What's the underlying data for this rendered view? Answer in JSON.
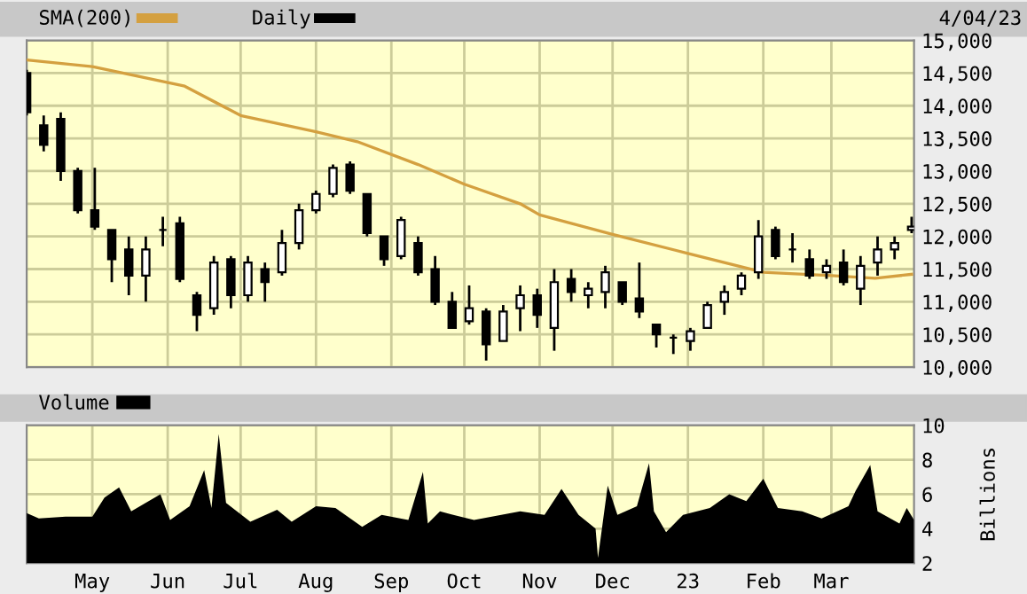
{
  "chart_data": [
    {
      "type": "candlestick",
      "xlim": [
        "2022-04-04",
        "2023-04-04"
      ],
      "ylim": [
        10000,
        15000
      ],
      "xticks": [
        {
          "value": "2022-05-01",
          "label": null
        },
        {
          "value": "2022-06-01",
          "label": null
        },
        {
          "value": "2022-07-01",
          "label": null
        },
        {
          "value": "2022-08-01",
          "label": null
        },
        {
          "value": "2022-09-01",
          "label": null
        },
        {
          "value": "2022-10-01",
          "label": null
        },
        {
          "value": "2022-11-01",
          "label": null
        },
        {
          "value": "2022-12-01",
          "label": null
        },
        {
          "value": "2023-01-01",
          "label": null
        },
        {
          "value": "2023-02-01",
          "label": null
        },
        {
          "value": "2023-03-01",
          "label": null
        }
      ],
      "yticks": [
        {
          "value": 10000,
          "label": "10,000"
        },
        {
          "value": 10500,
          "label": "10,500"
        },
        {
          "value": 11000,
          "label": "11,000"
        },
        {
          "value": 11500,
          "label": "11,500"
        },
        {
          "value": 12000,
          "label": "12,000"
        },
        {
          "value": 12500,
          "label": "12,500"
        },
        {
          "value": 13000,
          "label": "13,000"
        },
        {
          "value": 13500,
          "label": "13,500"
        },
        {
          "value": 14000,
          "label": "14,000"
        },
        {
          "value": 14500,
          "label": "14,500"
        },
        {
          "value": 15000,
          "label": "15,000"
        }
      ],
      "tick_labels": "y",
      "grid": true,
      "legend": "top left",
      "annotations": [
        "4/04/23"
      ],
      "series": [
        {
          "name": "SMA(200)",
          "type": "line",
          "color": "#d4a040",
          "x": [
            "2022-04-04",
            "2022-05-01",
            "2022-06-08",
            "2022-07-01",
            "2022-08-01",
            "2022-08-18",
            "2022-09-12",
            "2022-10-01",
            "2022-10-24",
            "2022-11-01",
            "2022-12-01",
            "2023-01-01",
            "2023-02-01",
            "2023-03-01",
            "2023-03-19",
            "2023-04-03"
          ],
          "values": [
            14700,
            14600,
            14300,
            13850,
            13600,
            13450,
            13100,
            12800,
            12500,
            12330,
            12030,
            11740,
            11450,
            11400,
            11360,
            11420
          ]
        },
        {
          "name": "Daily",
          "type": "candlestick",
          "color": "#000000",
          "x": [
            "2022-04-04",
            "2022-04-11",
            "2022-04-18",
            "2022-04-25",
            "2022-05-02",
            "2022-05-09",
            "2022-05-16",
            "2022-05-23",
            "2022-05-30",
            "2022-06-06",
            "2022-06-13",
            "2022-06-20",
            "2022-06-27",
            "2022-07-04",
            "2022-07-11",
            "2022-07-18",
            "2022-07-25",
            "2022-08-01",
            "2022-08-08",
            "2022-08-15",
            "2022-08-22",
            "2022-08-29",
            "2022-09-05",
            "2022-09-12",
            "2022-09-19",
            "2022-09-26",
            "2022-10-03",
            "2022-10-10",
            "2022-10-17",
            "2022-10-24",
            "2022-10-31",
            "2022-11-07",
            "2022-11-14",
            "2022-11-21",
            "2022-11-28",
            "2022-12-05",
            "2022-12-12",
            "2022-12-19",
            "2022-12-26",
            "2023-01-02",
            "2023-01-09",
            "2023-01-16",
            "2023-01-23",
            "2023-01-30",
            "2023-02-06",
            "2023-02-13",
            "2023-02-20",
            "2023-02-27",
            "2023-03-06",
            "2023-03-13",
            "2023-03-20",
            "2023-03-27",
            "2023-04-03"
          ],
          "ohlc": [
            [
              14500,
              14550,
              13850,
              13900
            ],
            [
              13700,
              13850,
              13300,
              13400
            ],
            [
              13800,
              13900,
              12850,
              13000
            ],
            [
              13000,
              13050,
              12350,
              12400
            ],
            [
              12400,
              13050,
              12100,
              12150
            ],
            [
              12100,
              12100,
              11300,
              11650
            ],
            [
              11800,
              12000,
              11100,
              11400
            ],
            [
              11400,
              12000,
              11000,
              11800
            ],
            [
              12100,
              12300,
              11850,
              12100
            ],
            [
              12200,
              12300,
              11300,
              11350
            ],
            [
              11100,
              11150,
              10550,
              10800
            ],
            [
              10900,
              11700,
              10800,
              11600
            ],
            [
              11650,
              11700,
              10900,
              11100
            ],
            [
              11100,
              11700,
              11000,
              11600
            ],
            [
              11500,
              11600,
              11000,
              11300
            ],
            [
              11450,
              12100,
              11400,
              11900
            ],
            [
              11900,
              12500,
              11800,
              12400
            ],
            [
              12400,
              12700,
              12350,
              12650
            ],
            [
              12650,
              13100,
              12600,
              13050
            ],
            [
              13100,
              13150,
              12650,
              12700
            ],
            [
              12650,
              12650,
              12000,
              12050
            ],
            [
              12000,
              12000,
              11550,
              11650
            ],
            [
              11700,
              12300,
              11650,
              12250
            ],
            [
              11900,
              12000,
              11400,
              11450
            ],
            [
              11500,
              11700,
              10950,
              11000
            ],
            [
              11000,
              11150,
              10600,
              10600
            ],
            [
              10700,
              11250,
              10650,
              10900
            ],
            [
              10850,
              10900,
              10100,
              10350
            ],
            [
              10400,
              10950,
              10400,
              10850
            ],
            [
              10900,
              11250,
              10550,
              11100
            ],
            [
              11100,
              11200,
              10600,
              10800
            ],
            [
              10600,
              11500,
              10250,
              11300
            ],
            [
              11350,
              11500,
              11000,
              11150
            ],
            [
              11100,
              11300,
              10900,
              11200
            ],
            [
              11150,
              11550,
              10900,
              11450
            ],
            [
              11300,
              11300,
              10950,
              11000
            ],
            [
              11050,
              11600,
              10750,
              10850
            ],
            [
              10650,
              10650,
              10300,
              10500
            ],
            [
              10450,
              10500,
              10200,
              10450
            ],
            [
              10400,
              10600,
              10250,
              10550
            ],
            [
              10600,
              11000,
              10600,
              10950
            ],
            [
              11000,
              11250,
              10800,
              11150
            ],
            [
              11200,
              11450,
              11100,
              11400
            ],
            [
              11450,
              12250,
              11350,
              12000
            ],
            [
              12100,
              12150,
              11650,
              11700
            ],
            [
              11800,
              12050,
              11600,
              11800
            ],
            [
              11650,
              11800,
              11350,
              11400
            ],
            [
              11450,
              11650,
              11350,
              11550
            ],
            [
              11600,
              11800,
              11250,
              11300
            ],
            [
              11200,
              11700,
              10950,
              11550
            ],
            [
              11600,
              12000,
              11400,
              11800
            ],
            [
              11800,
              12000,
              11650,
              11900
            ],
            [
              12100,
              12300,
              12050,
              12150
            ]
          ]
        }
      ]
    },
    {
      "type": "area",
      "xlim": [
        "2022-04-04",
        "2023-04-04"
      ],
      "ylim": [
        2,
        10
      ],
      "yticks": [
        2,
        4,
        6,
        8,
        10
      ],
      "ylabel": "Billions",
      "xticks": [
        {
          "value": "2022-05-01",
          "label": "May"
        },
        {
          "value": "2022-06-01",
          "label": "Jun"
        },
        {
          "value": "2022-07-01",
          "label": "Jul"
        },
        {
          "value": "2022-08-01",
          "label": "Aug"
        },
        {
          "value": "2022-09-01",
          "label": "Sep"
        },
        {
          "value": "2022-10-01",
          "label": "Oct"
        },
        {
          "value": "2022-11-01",
          "label": "Nov"
        },
        {
          "value": "2022-12-01",
          "label": "Dec"
        },
        {
          "value": "2023-01-01",
          "label": "23"
        },
        {
          "value": "2023-02-01",
          "label": "Feb"
        },
        {
          "value": "2023-03-01",
          "label": "Mar"
        }
      ],
      "grid": true,
      "legend": "top left",
      "series": [
        {
          "name": "Volume",
          "color": "#000000",
          "x": [
            "2022-04-04",
            "2022-04-09",
            "2022-04-20",
            "2022-05-01",
            "2022-05-06",
            "2022-05-12",
            "2022-05-17",
            "2022-05-29",
            "2022-06-02",
            "2022-06-10",
            "2022-06-16",
            "2022-06-19",
            "2022-06-22",
            "2022-06-25",
            "2022-07-05",
            "2022-07-16",
            "2022-07-22",
            "2022-08-01",
            "2022-08-09",
            "2022-08-20",
            "2022-08-28",
            "2022-09-08",
            "2022-09-14",
            "2022-09-16",
            "2022-09-21",
            "2022-10-05",
            "2022-10-24",
            "2022-11-03",
            "2022-11-10",
            "2022-11-17",
            "2022-11-24",
            "2022-11-25",
            "2022-11-29",
            "2022-12-03",
            "2022-12-11",
            "2022-12-16",
            "2022-12-18",
            "2022-12-23",
            "2022-12-30",
            "2023-01-10",
            "2023-01-18",
            "2023-01-25",
            "2023-02-01",
            "2023-02-07",
            "2023-02-17",
            "2023-02-25",
            "2023-03-08",
            "2023-03-11",
            "2023-03-17",
            "2023-03-20",
            "2023-03-29",
            "2023-04-01",
            "2023-04-04"
          ],
          "values": [
            4.9,
            4.6,
            4.7,
            4.7,
            5.8,
            6.4,
            5.0,
            6.0,
            4.5,
            5.3,
            7.4,
            5.2,
            9.5,
            5.5,
            4.4,
            5.1,
            4.4,
            5.3,
            5.2,
            4.1,
            4.8,
            4.5,
            7.3,
            4.3,
            5.0,
            4.5,
            5.0,
            4.8,
            6.3,
            4.8,
            4.0,
            2.3,
            6.5,
            4.8,
            5.3,
            7.8,
            5.0,
            3.8,
            4.8,
            5.2,
            6.0,
            5.6,
            6.9,
            5.2,
            5.0,
            4.6,
            5.3,
            6.2,
            7.7,
            5.0,
            4.3,
            5.2,
            4.5
          ]
        }
      ]
    }
  ]
}
